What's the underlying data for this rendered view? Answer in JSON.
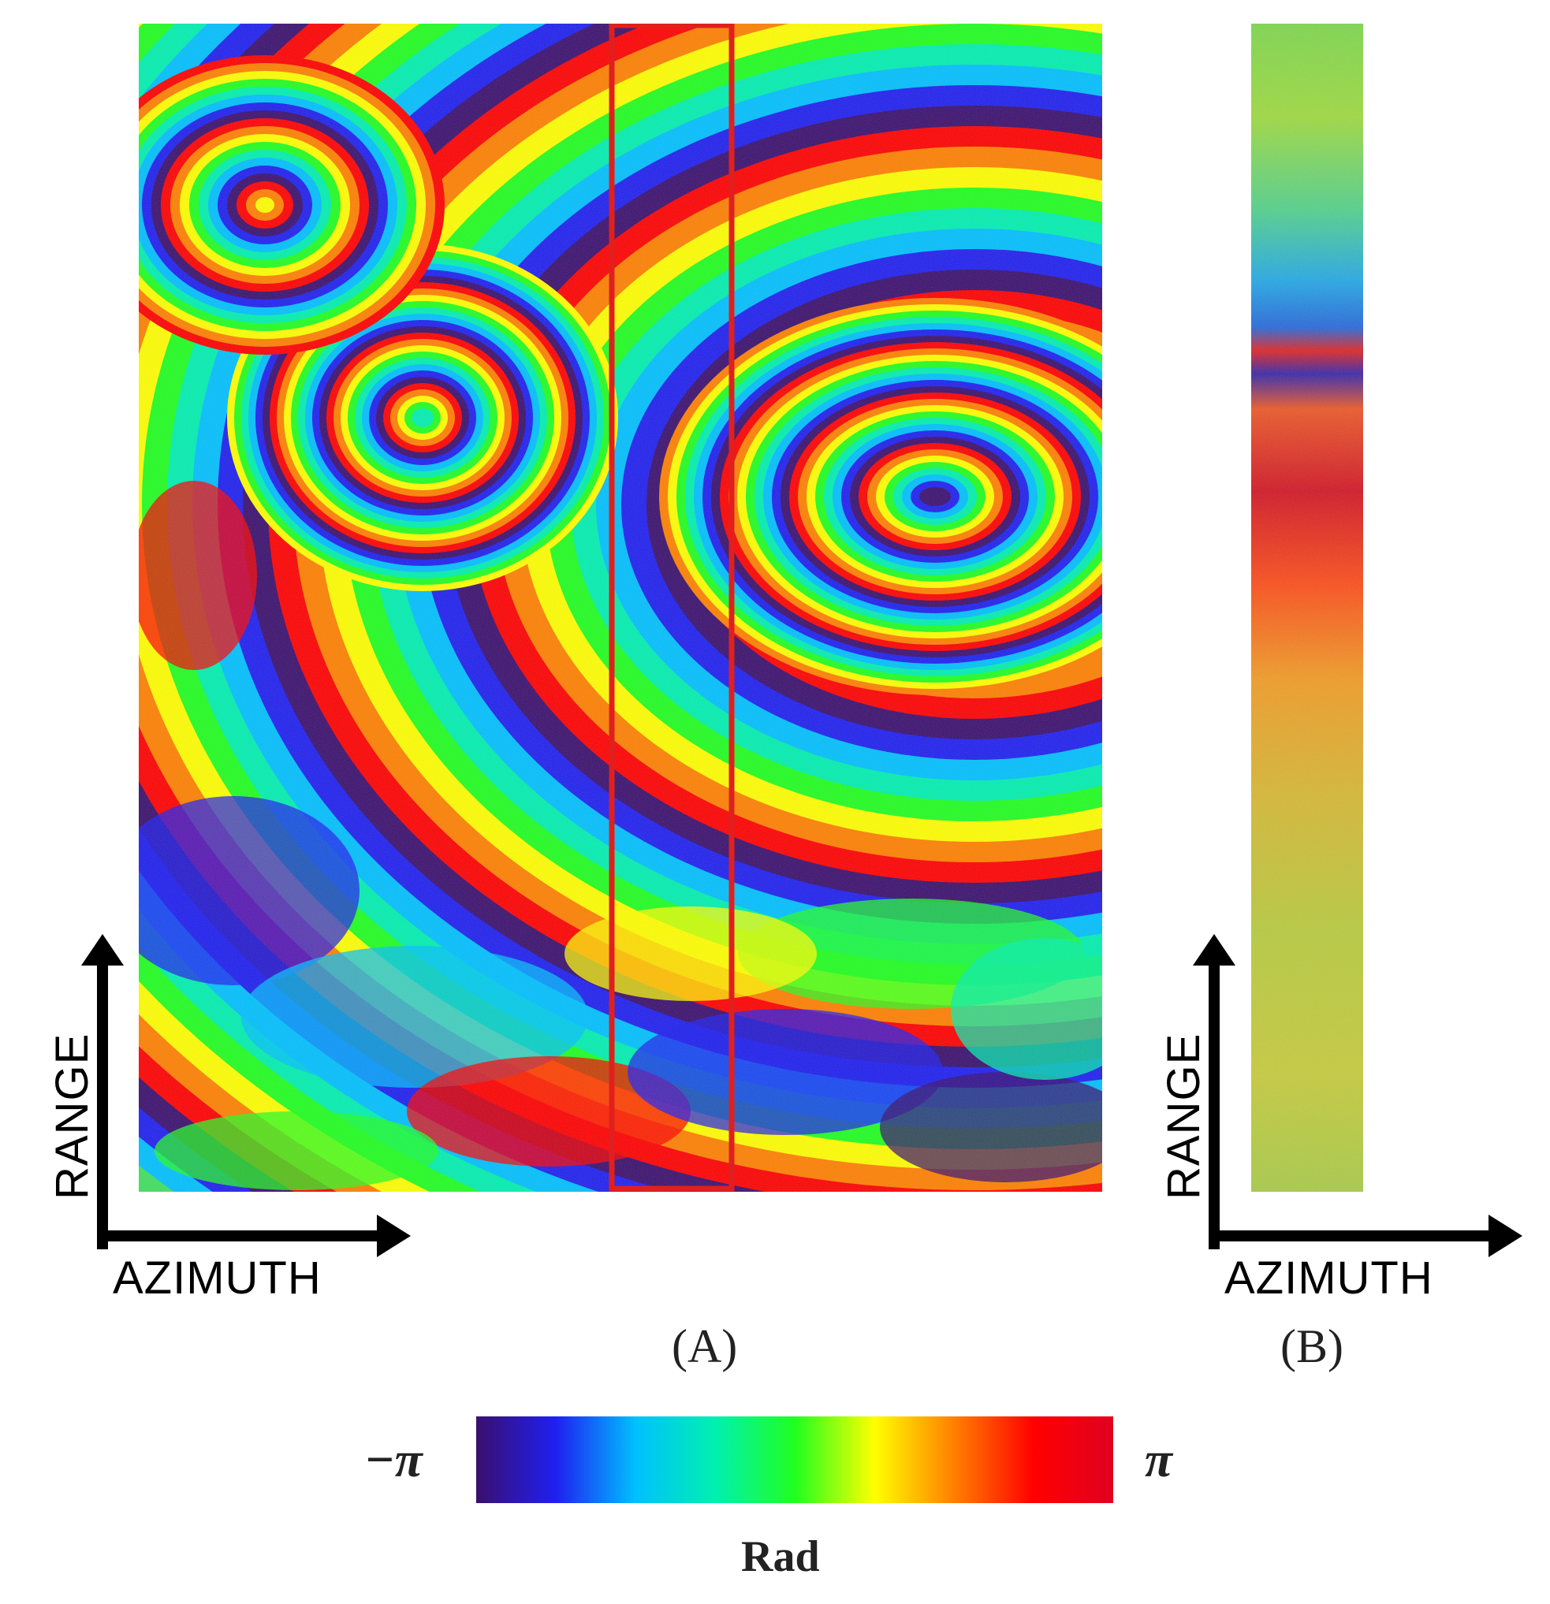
{
  "panel_a": {
    "caption": "(A)",
    "range_label": "RANGE",
    "azimuth_label": "AZIMUTH",
    "highlight_color": "#e0201e"
  },
  "panel_b": {
    "caption": "(B)",
    "range_label": "RANGE",
    "azimuth_label": "AZIMUTH"
  },
  "colorbar": {
    "min_label": "−π",
    "max_label": "π",
    "unit_label": "Rad",
    "colors": [
      "#3a0f6e",
      "#1f1ff0",
      "#00c0ff",
      "#00f0b0",
      "#20ff20",
      "#ffff00",
      "#ff8000",
      "#ff0000",
      "#e00020"
    ]
  }
}
